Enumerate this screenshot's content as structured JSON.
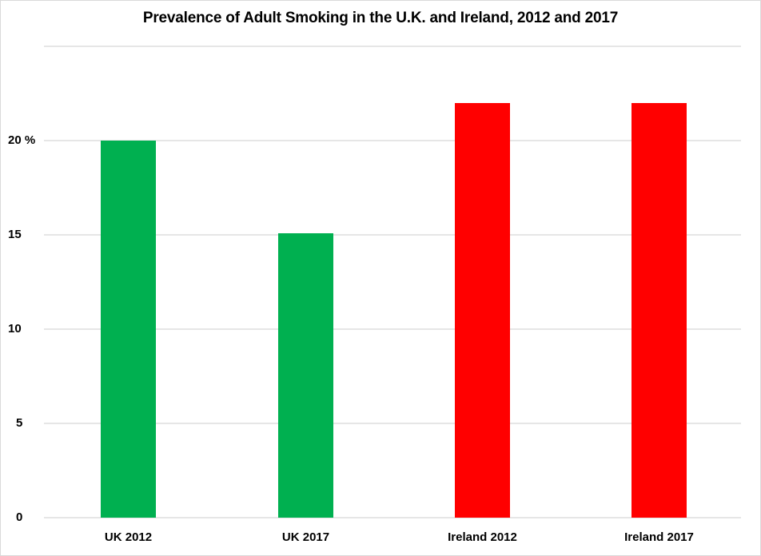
{
  "chart_data": {
    "type": "bar",
    "title": "Prevalence of Adult Smoking in the U.K. and Ireland, 2012 and 2017",
    "categories": [
      "UK 2012",
      "UK 2017",
      "Ireland 2012",
      "Ireland 2017"
    ],
    "values": [
      20,
      15.1,
      22,
      22
    ],
    "colors": [
      "#00b050",
      "#00b050",
      "#ff0000",
      "#ff0000"
    ],
    "xlabel": "",
    "ylabel": "",
    "ylim": [
      0,
      25
    ],
    "yticks": [
      0,
      5,
      10,
      15,
      20
    ],
    "ytick_labels": [
      "0",
      "5",
      "10",
      "15",
      "20 %"
    ],
    "grid": true,
    "legend": null
  },
  "colors": {
    "uk": "#00b050",
    "ireland": "#ff0000",
    "grid": "#e6e6e6"
  }
}
